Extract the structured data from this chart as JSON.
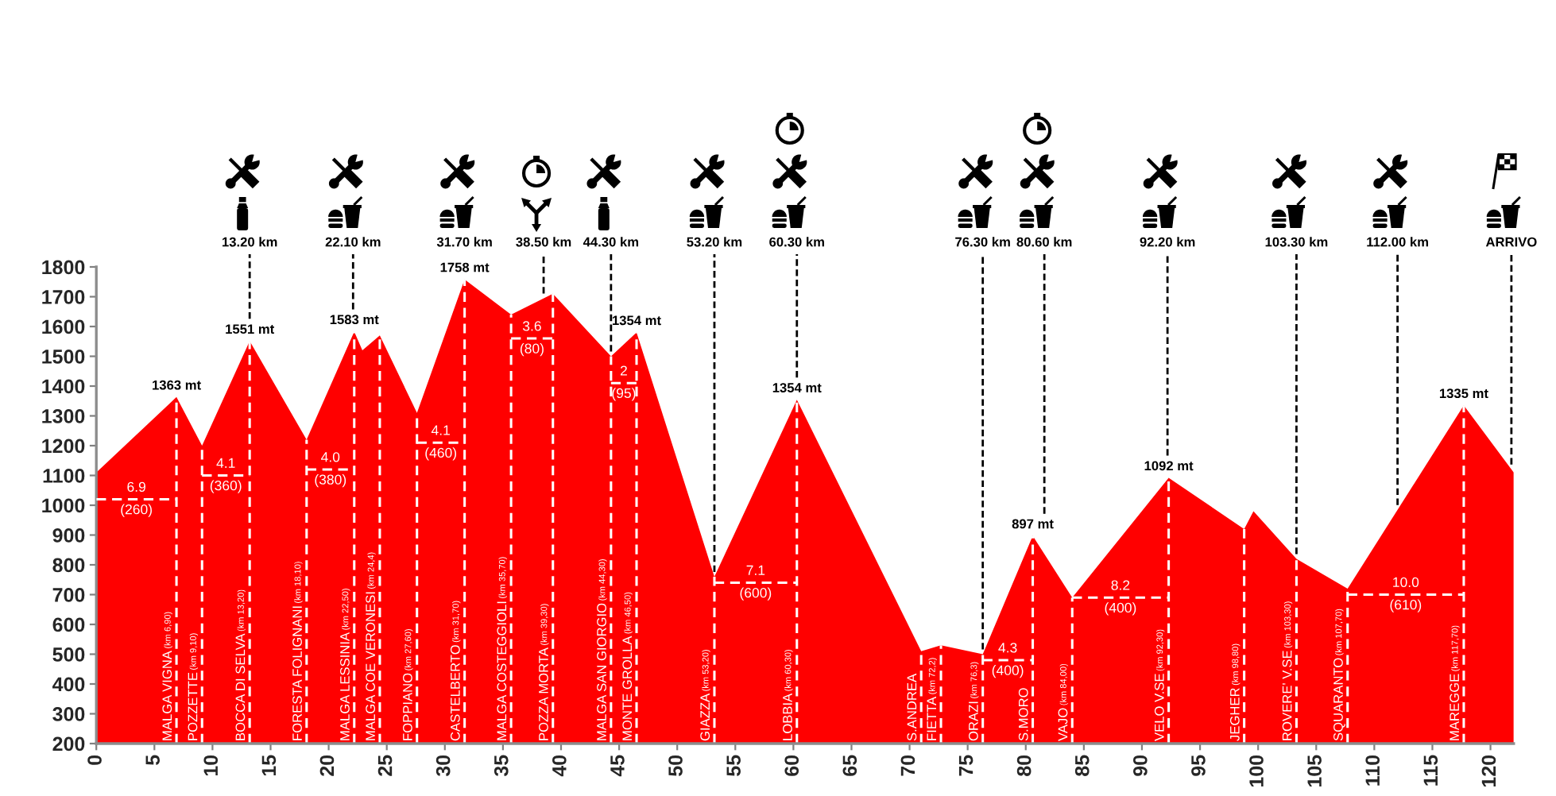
{
  "chart_data": {
    "type": "area",
    "series": [
      {
        "color": "#ff0000",
        "x": [
          0,
          6.9,
          9.1,
          13.2,
          18.1,
          22.2,
          22.9,
          24.4,
          27.6,
          31.7,
          35.7,
          39.3,
          44.3,
          46.5,
          53.2,
          60.3,
          71.0,
          72.7,
          76.3,
          80.6,
          84.0,
          92.3,
          98.8,
          99.6,
          103.3,
          107.7,
          117.7,
          122
        ],
        "values": [
          1110,
          1363,
          1200,
          1551,
          1220,
          1583,
          1520,
          1570,
          1310,
          1758,
          1640,
          1710,
          1500,
          1580,
          760,
          1354,
          510,
          530,
          500,
          897,
          690,
          1092,
          920,
          980,
          820,
          720,
          1335,
          1110
        ]
      },
      {
        "type": "line",
        "color": "#ffffff",
        "line_style": "dashed",
        "x": [
          0,
          6.9
        ],
        "values": [
          1020,
          1020
        ]
      },
      {
        "type": "line",
        "color": "#ffffff",
        "line_style": "dashed",
        "x": [
          9.1,
          13.2
        ],
        "values": [
          1100,
          1100
        ]
      },
      {
        "type": "line",
        "color": "#ffffff",
        "line_style": "dashed",
        "x": [
          18.1,
          22.2
        ],
        "values": [
          1120,
          1120
        ]
      },
      {
        "type": "line",
        "color": "#ffffff",
        "line_style": "dashed",
        "x": [
          27.6,
          31.7
        ],
        "values": [
          1210,
          1210
        ]
      },
      {
        "type": "line",
        "color": "#ffffff",
        "line_style": "dashed",
        "x": [
          35.7,
          39.3
        ],
        "values": [
          1560,
          1560
        ]
      },
      {
        "type": "line",
        "color": "#ffffff",
        "line_style": "dashed",
        "x": [
          44.3,
          46.5
        ],
        "values": [
          1410,
          1410
        ]
      },
      {
        "type": "line",
        "color": "#ffffff",
        "line_style": "dashed",
        "x": [
          53.2,
          60.3
        ],
        "values": [
          740,
          740
        ]
      },
      {
        "type": "line",
        "color": "#ffffff",
        "line_style": "dashed",
        "x": [
          76.3,
          80.6
        ],
        "values": [
          480,
          480
        ]
      },
      {
        "type": "line",
        "color": "#ffffff",
        "line_style": "dashed",
        "x": [
          84.0,
          92.3
        ],
        "values": [
          690,
          690
        ]
      },
      {
        "type": "line",
        "color": "#ffffff",
        "line_style": "dashed",
        "x": [
          107.7,
          117.7
        ],
        "values": [
          700,
          700
        ]
      }
    ],
    "xlim": [
      0,
      122
    ],
    "xticks": [
      0,
      5,
      10,
      15,
      20,
      25,
      30,
      35,
      40,
      45,
      50,
      55,
      60,
      65,
      70,
      75,
      80,
      85,
      90,
      95,
      100,
      105,
      110,
      115,
      120
    ],
    "ylim": [
      200,
      1800
    ],
    "yticks": [
      200,
      300,
      400,
      500,
      600,
      700,
      800,
      900,
      1000,
      1100,
      1200,
      1300,
      1400,
      1500,
      1600,
      1700,
      1800
    ],
    "ref_lines": [
      {
        "axis": "x",
        "value": 13.2,
        "label": "13.20 km",
        "color": "#000000",
        "line_style": "dashed"
      },
      {
        "axis": "x",
        "value": 22.1,
        "label": "22.10 km",
        "color": "#000000",
        "line_style": "dashed"
      },
      {
        "axis": "x",
        "value": 38.5,
        "label": "38.50 km",
        "color": "#000000",
        "line_style": "dashed"
      },
      {
        "axis": "x",
        "value": 44.3,
        "label": "44.30 km",
        "color": "#000000",
        "line_style": "dashed"
      },
      {
        "axis": "x",
        "value": 53.2,
        "label": "53.20 km",
        "color": "#000000",
        "line_style": "dashed"
      },
      {
        "axis": "x",
        "value": 60.3,
        "label": "60.30 km",
        "color": "#000000",
        "line_style": "dashed"
      },
      {
        "axis": "x",
        "value": 76.3,
        "label": "76.30 km",
        "color": "#000000",
        "line_style": "dashed"
      },
      {
        "axis": "x",
        "value": 81.6,
        "label": "80.60 km",
        "color": "#000000",
        "line_style": "dashed"
      },
      {
        "axis": "x",
        "value": 92.2,
        "label": "92.20 km",
        "color": "#000000",
        "line_style": "dashed"
      },
      {
        "axis": "x",
        "value": 103.3,
        "label": "103.30 km",
        "color": "#000000",
        "line_style": "dashed"
      },
      {
        "axis": "x",
        "value": 112.0,
        "label": "112.00 km",
        "color": "#000000",
        "line_style": "dashed"
      },
      {
        "axis": "x",
        "value": 121.8,
        "label": "ARRIVO",
        "color": "#000000",
        "line_style": "dashed"
      },
      {
        "axis": "x",
        "value": 6.9,
        "label": "MALGA VIGNA (km 6,90)",
        "color": "#ffffff",
        "line_style": "dashed"
      },
      {
        "axis": "x",
        "value": 9.1,
        "label": "POZZETTE (km 9,10)",
        "color": "#ffffff",
        "line_style": "dashed"
      },
      {
        "axis": "x",
        "value": 13.2,
        "label": "BOCCA DI SELVA (km 13,20)",
        "color": "#ffffff",
        "line_style": "dashed"
      },
      {
        "axis": "x",
        "value": 18.1,
        "label": "FORESTA FOLIGNANI (km 18,10)",
        "color": "#ffffff",
        "line_style": "dashed"
      },
      {
        "axis": "x",
        "value": 22.2,
        "label": "MALGA LESSINIA (km 22,50)",
        "color": "#ffffff",
        "line_style": "dashed"
      },
      {
        "axis": "x",
        "value": 24.4,
        "label": "MALGA COE VERONESI (km 24,4)",
        "color": "#ffffff",
        "line_style": "dashed"
      },
      {
        "axis": "x",
        "value": 27.6,
        "label": "FOPPIANO (km 27,60)",
        "color": "#ffffff",
        "line_style": "dashed"
      },
      {
        "axis": "x",
        "value": 31.7,
        "label": "CASTELBERTO (km 31,70)",
        "color": "#ffffff",
        "line_style": "dashed"
      },
      {
        "axis": "x",
        "value": 35.7,
        "label": "MALGA COSTEGGIOLI (km 35,70)",
        "color": "#ffffff",
        "line_style": "dashed"
      },
      {
        "axis": "x",
        "value": 39.3,
        "label": "POZZA MORTA (km 39,30)",
        "color": "#ffffff",
        "line_style": "dashed"
      },
      {
        "axis": "x",
        "value": 44.3,
        "label": "MALGA SAN GIORGIO (km 44,30)",
        "color": "#ffffff",
        "line_style": "dashed"
      },
      {
        "axis": "x",
        "value": 46.5,
        "label": "MONTE GROLLA (km 46,50)",
        "color": "#ffffff",
        "line_style": "dashed"
      },
      {
        "axis": "x",
        "value": 53.2,
        "label": "GIAZZA (km 53,20)",
        "color": "#ffffff",
        "line_style": "dashed"
      },
      {
        "axis": "x",
        "value": 60.3,
        "label": "LOBBIA (km 60,30)",
        "color": "#ffffff",
        "line_style": "dashed"
      },
      {
        "axis": "x",
        "value": 71.0,
        "label": "S.ANDREA",
        "color": "#ffffff",
        "line_style": "dashed"
      },
      {
        "axis": "x",
        "value": 72.7,
        "label": "FIETTA (km 72,2)",
        "color": "#ffffff",
        "line_style": "dashed"
      },
      {
        "axis": "x",
        "value": 76.3,
        "label": "ORAZI (km 76,3)",
        "color": "#ffffff",
        "line_style": "dashed"
      },
      {
        "axis": "x",
        "value": 80.6,
        "label": "S.MORO",
        "color": "#ffffff",
        "line_style": "dashed"
      },
      {
        "axis": "x",
        "value": 84.0,
        "label": "VAJO (km 84,00)",
        "color": "#ffffff",
        "line_style": "dashed"
      },
      {
        "axis": "x",
        "value": 92.3,
        "label": "VELO V.SE (km 92,30)",
        "color": "#ffffff",
        "line_style": "dashed"
      },
      {
        "axis": "x",
        "value": 98.8,
        "label": "JEGHER (km 98,80)",
        "color": "#ffffff",
        "line_style": "dashed"
      },
      {
        "axis": "x",
        "value": 103.3,
        "label": "ROVERE' V.SE (km 103,30)",
        "color": "#ffffff",
        "line_style": "dashed"
      },
      {
        "axis": "x",
        "value": 107.7,
        "label": "SQUARANTO (km 107,70)",
        "color": "#ffffff",
        "line_style": "dashed"
      },
      {
        "axis": "x",
        "value": 117.7,
        "label": "MAREGGE (km 117,70)",
        "color": "#ffffff",
        "line_style": "dashed"
      }
    ],
    "annotations": [
      {
        "text": "1363 mt",
        "x": 6.9,
        "y": 1363
      },
      {
        "text": "1551 mt",
        "x": 13.2,
        "y": 1551
      },
      {
        "text": "1583 mt",
        "x": 22.2,
        "y": 1583
      },
      {
        "text": "1758 mt",
        "x": 31.7,
        "y": 1758
      },
      {
        "text": "31.70 km",
        "x": 31.7,
        "y": 1758
      },
      {
        "text": "1354 mt",
        "x": 46.5,
        "y": 1580
      },
      {
        "text": "1354 mt",
        "x": 60.3,
        "y": 1354
      },
      {
        "text": "897 mt",
        "x": 80.6,
        "y": 897
      },
      {
        "text": "1092 mt",
        "x": 92.3,
        "y": 1092
      },
      {
        "text": "1335 mt",
        "x": 117.7,
        "y": 1335
      },
      {
        "text": "6.9",
        "x": 3.45,
        "y": 1020
      },
      {
        "text": "(260)",
        "x": 3.45,
        "y": 1020
      },
      {
        "text": "4.1",
        "x": 11.15,
        "y": 1100
      },
      {
        "text": "(360)",
        "x": 11.15,
        "y": 1100
      },
      {
        "text": "4.0",
        "x": 20.15,
        "y": 1120
      },
      {
        "text": "(380)",
        "x": 20.15,
        "y": 1120
      },
      {
        "text": "4.1",
        "x": 29.65,
        "y": 1210
      },
      {
        "text": "(460)",
        "x": 29.65,
        "y": 1210
      },
      {
        "text": "3.6",
        "x": 37.5,
        "y": 1560
      },
      {
        "text": "(80)",
        "x": 37.5,
        "y": 1560
      },
      {
        "text": "2",
        "x": 45.4,
        "y": 1410
      },
      {
        "text": "(95)",
        "x": 45.4,
        "y": 1410
      },
      {
        "text": "7.1",
        "x": 56.75,
        "y": 740
      },
      {
        "text": "(600)",
        "x": 56.75,
        "y": 740
      },
      {
        "text": "4.3",
        "x": 78.45,
        "y": 480
      },
      {
        "text": "(400)",
        "x": 78.45,
        "y": 480
      },
      {
        "text": "8.2",
        "x": 88.15,
        "y": 690
      },
      {
        "text": "(400)",
        "x": 88.15,
        "y": 690
      },
      {
        "text": "10.0",
        "x": 112.7,
        "y": 700
      },
      {
        "text": "(610)",
        "x": 112.7,
        "y": 700
      }
    ]
  }
}
